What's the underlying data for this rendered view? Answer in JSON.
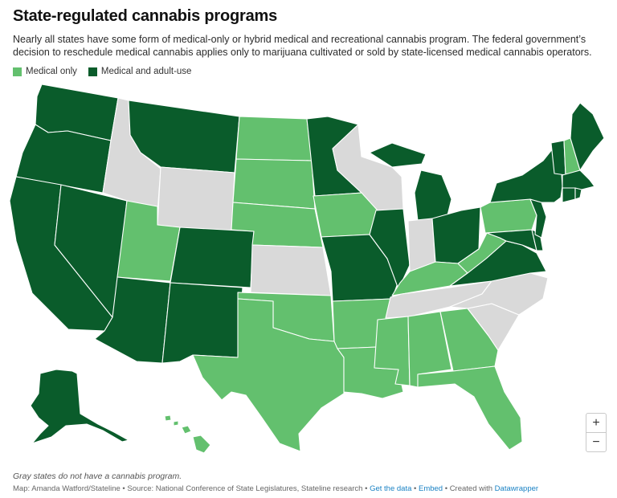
{
  "header": {
    "title": "State-regulated cannabis programs",
    "subtitle": "Nearly all states have some form of medical-only or hybrid medical and recreational cannabis program. The federal government’s decision to reschedule medical cannabis applies only to marijuana cultivated or sold by state-licensed medical cannabis operators."
  },
  "legend": [
    {
      "label": "Medical only",
      "color": "#63c06e"
    },
    {
      "label": "Medical and adult-use",
      "color": "#0a5c2b"
    }
  ],
  "colors": {
    "medical_only": "#63c06e",
    "medical_and_adult_use": "#0a5c2b",
    "no_program": "#d9d9d9"
  },
  "states": {
    "medical_and_adult_use": [
      "Washington",
      "Oregon",
      "California",
      "Nevada",
      "Arizona",
      "Montana",
      "Colorado",
      "New Mexico",
      "Alaska",
      "Minnesota",
      "Michigan",
      "Illinois",
      "Missouri",
      "Ohio",
      "Virginia",
      "Maryland",
      "Delaware",
      "New Jersey",
      "New York",
      "Vermont",
      "Maine",
      "Massachusetts",
      "Rhode Island",
      "Connecticut"
    ],
    "medical_only": [
      "Utah",
      "North Dakota",
      "South Dakota",
      "Nebraska",
      "Iowa",
      "Oklahoma",
      "Texas",
      "Arkansas",
      "Louisiana",
      "Mississippi",
      "Alabama",
      "Georgia",
      "Florida",
      "Kentucky",
      "West Virginia",
      "Pennsylvania",
      "New Hampshire",
      "Hawaii"
    ],
    "no_program": [
      "Idaho",
      "Wyoming",
      "Kansas",
      "Wisconsin",
      "Indiana",
      "Tennessee",
      "North Carolina",
      "South Carolina"
    ]
  },
  "zoom": {
    "in_label": "+",
    "out_label": "−"
  },
  "footer": {
    "note": "Gray states do not have a cannabis program.",
    "credit": "Map: Amanda Watford/Stateline • Source: National Conference of State Legislatures, Stateline research • ",
    "get_data": "Get the data",
    "sep1": " • ",
    "embed": "Embed",
    "created_with": " • Created with ",
    "datawrapper": "Datawrapper"
  }
}
